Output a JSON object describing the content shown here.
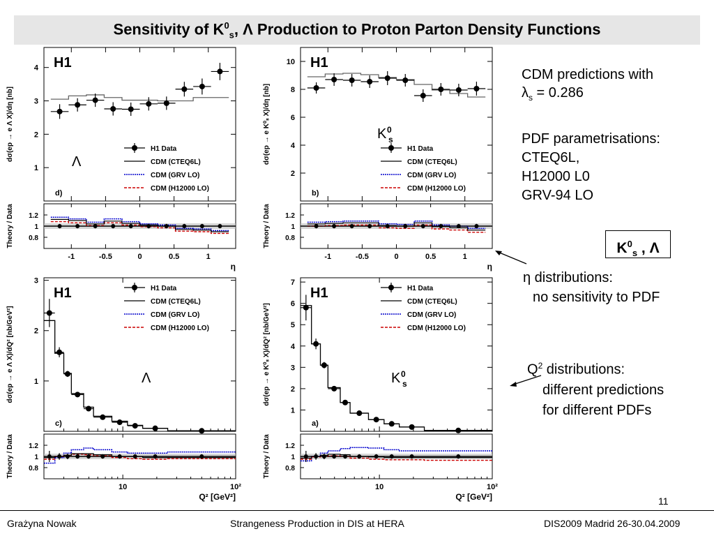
{
  "slide": {
    "title_prefix": "Sensitivity of K",
    "title_sup": "0",
    "title_sub": "s",
    "title_suffix": ", Λ  Production to Proton Parton Density Functions",
    "page_number": "11"
  },
  "side_text": {
    "cdm_line1": "CDM predictions with",
    "cdm_lambda": "λ",
    "cdm_lambda_sub": "s",
    "cdm_value": " = 0.286",
    "pdf_header": "PDF parametrisations:",
    "pdf_items": [
      "CTEQ6L,",
      "H12000 L0",
      "GRV-94 LO"
    ],
    "box_k": "K",
    "box_sup": "0",
    "box_sub": "s",
    "box_rest": " , Λ",
    "eta_line1": "η distributions:",
    "eta_line2": "no sensitivity to PDF",
    "q2_line1_base": "Q",
    "q2_line1_sup": "2",
    "q2_line1_rest": " distributions:",
    "q2_line2": "different predictions",
    "q2_line3": "for different PDFs"
  },
  "footer": {
    "author": "Grażyna Nowak",
    "talk": "Strangeness Production in DIS at HERA",
    "conference": "DIS2009 Madrid 26-30.04.2009"
  },
  "colors": {
    "data": "#000000",
    "cteq": "#000000",
    "grv": "#0000cc",
    "h12000": "#cc0000",
    "cteq_main_eta": "#666666",
    "band": "#bbbbbb"
  },
  "chart_data": [
    {
      "id": "panel-d",
      "type": "line",
      "kind": "eta",
      "logo": "H1",
      "panel_label": "d)",
      "particle_label": "Λ",
      "ylabel": "dσ(ep → e Λ X)/dη [nb]",
      "xlabel": "η",
      "xlim": [
        -1.4,
        1.4
      ],
      "ylim": [
        0,
        4.6
      ],
      "yticks": [
        1,
        2,
        3,
        4
      ],
      "xticks": [
        -1,
        -0.5,
        0,
        0.5,
        1
      ],
      "legend": [
        "H1 Data",
        "CDM (CTEQ6L)",
        "CDM (GRV LO)",
        "CDM (H12000 LO)"
      ],
      "legend_position": "bottom-right",
      "bins": [
        -1.3,
        -1.04,
        -0.78,
        -0.52,
        -0.26,
        0,
        0.26,
        0.52,
        0.78,
        1.04,
        1.3
      ],
      "data": [
        2.68,
        2.88,
        3.02,
        2.76,
        2.75,
        2.91,
        2.93,
        3.35,
        3.43,
        3.88
      ],
      "data_err": [
        0.22,
        0.2,
        0.2,
        0.2,
        0.2,
        0.2,
        0.2,
        0.22,
        0.24,
        0.26
      ],
      "cdm": [
        3.05,
        3.15,
        3.18,
        3.1,
        3.02,
        3.02,
        3.0,
        3.0,
        3.1,
        3.1
      ],
      "ratio_ylim": [
        0.6,
        1.4
      ],
      "ratio_yticks": [
        0.8,
        1,
        1.2
      ],
      "ratio_ylabel": "Theory / Data",
      "ratio_data_err": [
        0.04,
        0.04,
        0.04,
        0.04,
        0.04,
        0.04,
        0.04,
        0.04,
        0.04,
        0.04
      ],
      "ratio_band": 0.05,
      "ratio": {
        "cteq": [
          1.12,
          1.1,
          1.04,
          1.09,
          1.05,
          1.02,
          1.0,
          0.94,
          0.93,
          0.9
        ],
        "grv": [
          1.16,
          1.13,
          1.07,
          1.13,
          1.08,
          1.04,
          1.02,
          0.96,
          0.95,
          0.92
        ],
        "h12000": [
          1.08,
          1.06,
          1.01,
          1.06,
          1.02,
          0.99,
          0.97,
          0.91,
          0.9,
          0.87
        ]
      }
    },
    {
      "id": "panel-b",
      "type": "line",
      "kind": "eta",
      "logo": "H1",
      "panel_label": "b)",
      "particle_label": "K",
      "particle_sup": "0",
      "particle_sub": "s",
      "ylabel": "dσ(ep → e K⁰ₛ X)/dη [nb]",
      "xlabel": "η",
      "xlim": [
        -1.4,
        1.4
      ],
      "ylim": [
        0,
        11
      ],
      "yticks": [
        2,
        4,
        6,
        8,
        10
      ],
      "xticks": [
        -1,
        -0.5,
        0,
        0.5,
        1
      ],
      "legend": [
        "H1 Data",
        "CDM (CTEQ6L)",
        "CDM (GRV LO)",
        "CDM (H12000 LO)"
      ],
      "legend_position": "bottom-right",
      "bins": [
        -1.3,
        -1.04,
        -0.78,
        -0.52,
        -0.26,
        0,
        0.26,
        0.52,
        0.78,
        1.04,
        1.3
      ],
      "data": [
        8.1,
        8.7,
        8.65,
        8.55,
        8.8,
        8.65,
        7.55,
        8.0,
        7.95,
        8.05
      ],
      "data_err": [
        0.4,
        0.45,
        0.45,
        0.45,
        0.5,
        0.45,
        0.45,
        0.45,
        0.45,
        0.5
      ],
      "cdm": [
        8.9,
        9.1,
        9.15,
        9.05,
        8.85,
        8.7,
        8.35,
        7.95,
        7.7,
        7.45
      ],
      "ratio_ylim": [
        0.6,
        1.4
      ],
      "ratio_yticks": [
        0.8,
        1,
        1.2
      ],
      "ratio_ylabel": "Theory / Data",
      "ratio_data_err": [
        0.04,
        0.04,
        0.04,
        0.04,
        0.04,
        0.04,
        0.04,
        0.04,
        0.04,
        0.04
      ],
      "ratio_band": 0.05,
      "ratio": {
        "cteq": [
          1.04,
          1.05,
          1.06,
          1.06,
          1.01,
          1.0,
          1.06,
          0.99,
          0.97,
          0.93
        ],
        "grv": [
          1.07,
          1.08,
          1.09,
          1.09,
          1.04,
          1.03,
          1.09,
          1.02,
          1.0,
          0.96
        ],
        "h12000": [
          1.0,
          1.01,
          1.02,
          1.02,
          0.97,
          0.96,
          1.02,
          0.95,
          0.93,
          0.89
        ]
      }
    },
    {
      "id": "panel-c",
      "type": "line",
      "kind": "q2",
      "logo": "H1",
      "panel_label": "c)",
      "particle_label": "Λ",
      "ylabel": "dσ(ep → e Λ X)/dQ² [nb/GeV²]",
      "xlabel": "Q² [GeV²]",
      "xscale": "log",
      "xlim": [
        2,
        100
      ],
      "ylim": [
        0,
        3.05
      ],
      "yticks": [
        1,
        2,
        3
      ],
      "xticks": [
        10,
        100
      ],
      "xtick_labels": [
        "10",
        "10²"
      ],
      "legend": [
        "H1 Data",
        "CDM (CTEQ6L)",
        "CDM (GRV LO)",
        "CDM (H12000 LO)"
      ],
      "legend_position": "top-right",
      "bins": [
        2,
        2.5,
        3,
        3.5,
        4.5,
        5.5,
        8,
        11,
        15,
        25,
        100
      ],
      "data": [
        2.35,
        1.57,
        1.14,
        0.73,
        0.45,
        0.28,
        0.18,
        0.11,
        0.06,
        0.01
      ],
      "data_err": [
        0.28,
        0.1,
        0.06,
        0.04,
        0.03,
        0.02,
        0.01,
        0.01,
        0.01,
        0.005
      ],
      "cdm": [
        2.2,
        1.55,
        1.15,
        0.75,
        0.48,
        0.3,
        0.2,
        0.12,
        0.06,
        0.01
      ],
      "ratio_ylim": [
        0.6,
        1.4
      ],
      "ratio_yticks": [
        0.8,
        1,
        1.2
      ],
      "ratio_ylabel": "Theory / Data",
      "ratio_data_err": [
        0.1,
        0.06,
        0.05,
        0.04,
        0.04,
        0.04,
        0.04,
        0.04,
        0.04,
        0.04
      ],
      "ratio_band": 0.05,
      "ratio": {
        "cteq": [
          0.98,
          1.0,
          1.02,
          1.05,
          1.05,
          1.03,
          1.0,
          1.0,
          0.98,
          0.98
        ],
        "grv": [
          0.88,
          0.98,
          1.06,
          1.12,
          1.15,
          1.12,
          1.08,
          1.06,
          1.06,
          1.08
        ],
        "h12000": [
          0.95,
          1.0,
          1.02,
          1.04,
          1.03,
          1.01,
          0.98,
          0.96,
          0.95,
          0.96
        ]
      }
    },
    {
      "id": "panel-a",
      "type": "line",
      "kind": "q2",
      "logo": "H1",
      "panel_label": "a)",
      "particle_label": "K",
      "particle_sup": "0",
      "particle_sub": "s",
      "ylabel": "dσ(ep → e K⁰ₛ X)/dQ² [nb/GeV²]",
      "xlabel": "Q² [GeV²]",
      "xscale": "log",
      "xlim": [
        2,
        100
      ],
      "ylim": [
        0,
        7.2
      ],
      "yticks": [
        1,
        2,
        3,
        4,
        5,
        6,
        7
      ],
      "xticks": [
        10,
        100
      ],
      "xtick_labels": [
        "10",
        "10²"
      ],
      "legend": [
        "H1 Data",
        "CDM (CTEQ6L)",
        "CDM (GRV LO)",
        "CDM (H12000 LO)"
      ],
      "legend_position": "top-right",
      "bins": [
        2,
        2.5,
        3,
        3.5,
        4.5,
        5.5,
        8,
        11,
        15,
        25,
        100
      ],
      "data": [
        5.8,
        4.1,
        3.1,
        2.0,
        1.35,
        0.85,
        0.55,
        0.35,
        0.2,
        0.04
      ],
      "data_err": [
        0.6,
        0.25,
        0.15,
        0.1,
        0.07,
        0.05,
        0.03,
        0.02,
        0.01,
        0.005
      ],
      "cdm": [
        5.9,
        4.1,
        3.1,
        2.05,
        1.35,
        0.85,
        0.55,
        0.35,
        0.2,
        0.04
      ],
      "ratio_ylim": [
        0.6,
        1.4
      ],
      "ratio_yticks": [
        0.8,
        1,
        1.2
      ],
      "ratio_ylabel": "Theory / Data",
      "ratio_data_err": [
        0.1,
        0.06,
        0.05,
        0.04,
        0.04,
        0.04,
        0.04,
        0.04,
        0.04,
        0.04
      ],
      "ratio_band": 0.05,
      "ratio": {
        "cteq": [
          0.97,
          1.0,
          1.02,
          1.04,
          1.03,
          1.0,
          0.99,
          0.98,
          0.98,
          0.98
        ],
        "grv": [
          0.92,
          1.0,
          1.06,
          1.1,
          1.14,
          1.16,
          1.15,
          1.12,
          1.1,
          1.1
        ],
        "h12000": [
          0.95,
          0.99,
          1.0,
          1.01,
          1.0,
          0.97,
          0.95,
          0.94,
          0.94,
          0.93
        ]
      }
    }
  ]
}
